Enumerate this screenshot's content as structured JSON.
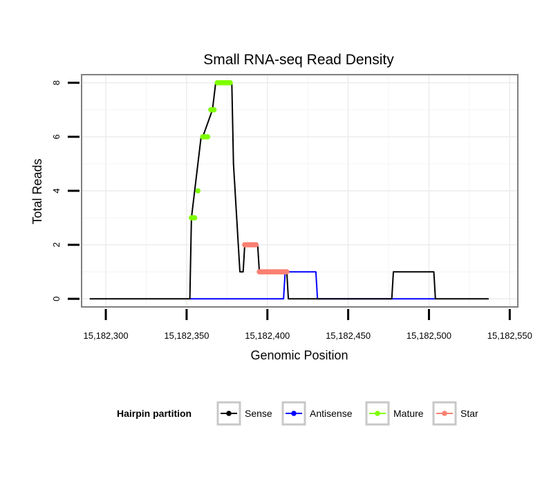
{
  "chart_data": {
    "type": "line",
    "title": "Small RNA-seq Read Density",
    "xlabel": "Genomic Position",
    "ylabel": "Total Reads",
    "xlim": [
      15182285,
      15182555
    ],
    "ylim": [
      -0.3,
      8.3
    ],
    "x_ticks": [
      {
        "value": 15182300,
        "label": "15,182,300"
      },
      {
        "value": 15182350,
        "label": "15,182,350"
      },
      {
        "value": 15182400,
        "label": "15,182,400"
      },
      {
        "value": 15182450,
        "label": "15,182,450"
      },
      {
        "value": 15182500,
        "label": "15,182,500"
      },
      {
        "value": 15182550,
        "label": "15,182,550"
      }
    ],
    "y_ticks": [
      {
        "value": 0,
        "label": "0"
      },
      {
        "value": 2,
        "label": "2"
      },
      {
        "value": 4,
        "label": "4"
      },
      {
        "value": 6,
        "label": "6"
      },
      {
        "value": 8,
        "label": "8"
      }
    ],
    "grid": true,
    "legend": {
      "title": "Hairpin partition",
      "placement": "bottom",
      "entries": [
        "Sense",
        "Antisense",
        "Mature",
        "Star"
      ]
    },
    "series": [
      {
        "name": "Sense",
        "color": "#000000",
        "kind": "line",
        "x": [
          15182290,
          15182352,
          15182353,
          15182359,
          15182360,
          15182366,
          15182368,
          15182378,
          15182379,
          15182383,
          15182385,
          15182386,
          15182394,
          15182395,
          15182412,
          15182413,
          15182477,
          15182478,
          15182503,
          15182504,
          15182537
        ],
        "y": [
          0,
          0,
          3,
          6,
          6,
          7,
          8,
          8,
          5,
          1,
          1,
          2,
          2,
          1,
          1,
          0,
          0,
          1,
          1,
          0,
          0
        ]
      },
      {
        "name": "Antisense",
        "color": "#0000ff",
        "kind": "line",
        "x": [
          15182352,
          15182410,
          15182411,
          15182430,
          15182431,
          15182504
        ],
        "y": [
          0,
          0,
          1,
          1,
          0,
          0
        ]
      },
      {
        "name": "Mature",
        "color": "#7fff00",
        "kind": "point",
        "x": [
          15182353,
          15182354,
          15182355,
          15182357,
          15182360,
          15182361,
          15182362,
          15182363,
          15182365,
          15182366,
          15182367,
          15182369,
          15182370,
          15182371,
          15182372,
          15182373,
          15182374,
          15182375,
          15182376,
          15182377
        ],
        "y": [
          3,
          3,
          3,
          4,
          6,
          6,
          6,
          6,
          7,
          7,
          7,
          8,
          8,
          8,
          8,
          8,
          8,
          8,
          8,
          8
        ]
      },
      {
        "name": "Star",
        "color": "#fa8072",
        "kind": "point",
        "x": [
          15182386,
          15182387,
          15182388,
          15182389,
          15182390,
          15182391,
          15182392,
          15182393,
          15182395,
          15182396,
          15182397,
          15182398,
          15182399,
          15182400,
          15182401,
          15182402,
          15182403,
          15182404,
          15182405,
          15182406,
          15182407,
          15182408,
          15182409,
          15182410,
          15182411,
          15182412
        ],
        "y": [
          2,
          2,
          2,
          2,
          2,
          2,
          2,
          2,
          1,
          1,
          1,
          1,
          1,
          1,
          1,
          1,
          1,
          1,
          1,
          1,
          1,
          1,
          1,
          1,
          1,
          1
        ]
      }
    ]
  }
}
